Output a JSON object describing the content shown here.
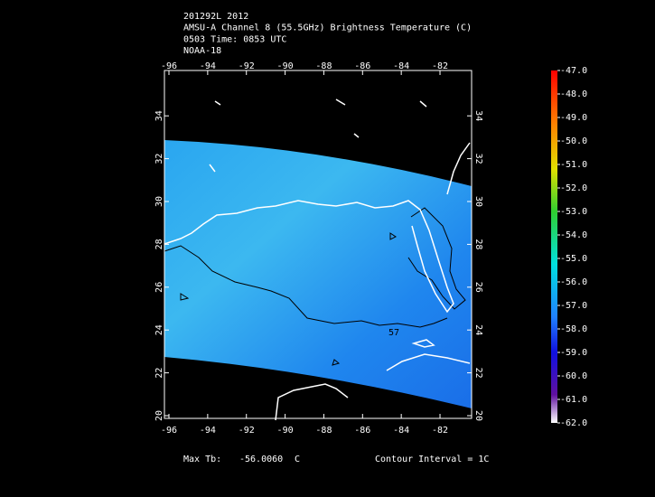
{
  "header": {
    "lines": [
      "201292L 2012",
      "AMSU-A Channel 8 (55.5GHz) Brightness Temperature (C)",
      "0503 Time: 0853 UTC",
      "NOAA-18"
    ]
  },
  "map": {
    "lon_ticks": [
      -96,
      -94,
      -92,
      -90,
      -88,
      -86,
      -84,
      -82
    ],
    "lat_ticks": [
      20,
      22,
      24,
      26,
      28,
      30,
      32,
      34
    ],
    "contour_label": "57"
  },
  "colorbar": {
    "ticks": [
      {
        "value": -47,
        "label": "-47.0"
      },
      {
        "value": -48,
        "label": "-48.0"
      },
      {
        "value": -49,
        "label": "-49.0"
      },
      {
        "value": -50,
        "label": "-50.0"
      },
      {
        "value": -51,
        "label": "-51.0"
      },
      {
        "value": -52,
        "label": "-52.0"
      },
      {
        "value": -53,
        "label": "-53.0"
      },
      {
        "value": -54,
        "label": "-54.0"
      },
      {
        "value": -55,
        "label": "-55.0"
      },
      {
        "value": -56,
        "label": "-56.0"
      },
      {
        "value": -57,
        "label": "-57.0"
      },
      {
        "value": -58,
        "label": "-58.0"
      },
      {
        "value": -59,
        "label": "-59.0"
      },
      {
        "value": -60,
        "label": "-60.0"
      },
      {
        "value": -61,
        "label": "-61.0"
      },
      {
        "value": -62,
        "label": "-62.0"
      }
    ]
  },
  "footer": {
    "max_label": "Max Tb:",
    "max_value": "-56.0060",
    "unit": "C",
    "contour_interval": "Contour Interval = 1C"
  }
}
